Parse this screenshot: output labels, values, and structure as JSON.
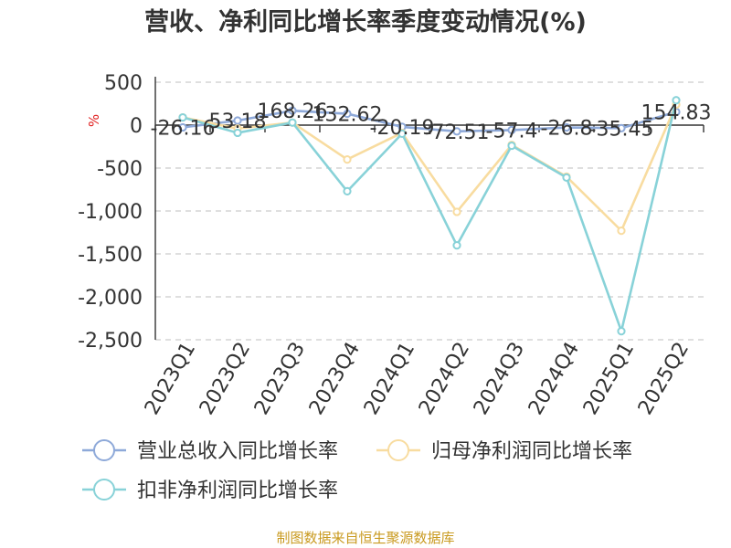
{
  "chart_data": {
    "type": "line",
    "title": "营收、净利同比增长率季度变动情况(%)",
    "ylabel": "%",
    "ylim": [
      -2500,
      500
    ],
    "yticks": [
      500,
      0,
      -500,
      -1000,
      -1500,
      -2000,
      -2500
    ],
    "ytick_labels": [
      "500",
      "0",
      "-500",
      "-1,000",
      "-1,500",
      "-2,000",
      "-2,500"
    ],
    "grid": true,
    "categories": [
      "2023Q1",
      "2023Q2",
      "2023Q3",
      "2023Q4",
      "2024Q1",
      "2024Q2",
      "2024Q3",
      "2024Q4",
      "2025Q1",
      "2025Q2"
    ],
    "series": [
      {
        "name": "营业总收入同比增长率",
        "color": "#8ea9d9",
        "values": [
          -26.16,
          53.18,
          168.26,
          132.62,
          -20.19,
          -72.51,
          -57.4,
          -26.8,
          -35.45,
          154.83
        ],
        "labels": [
          "-26.16",
          "53.18",
          "168.26",
          "132.62",
          "-20.19",
          "-72.51",
          "-57.4",
          "-26.8",
          "-35.45",
          "154.83"
        ]
      },
      {
        "name": "归母净利润同比增长率",
        "color": "#f8dca0",
        "values": [
          90,
          -40,
          30,
          -400,
          -90,
          -1010,
          -230,
          -600,
          -1230,
          240
        ]
      },
      {
        "name": "扣非净利润同比增长率",
        "color": "#88d2d8",
        "values": [
          90,
          -90,
          30,
          -770,
          -100,
          -1400,
          -240,
          -610,
          -2400,
          290
        ]
      }
    ],
    "legend_position": "bottom"
  },
  "source": "制图数据来自恒生聚源数据库"
}
